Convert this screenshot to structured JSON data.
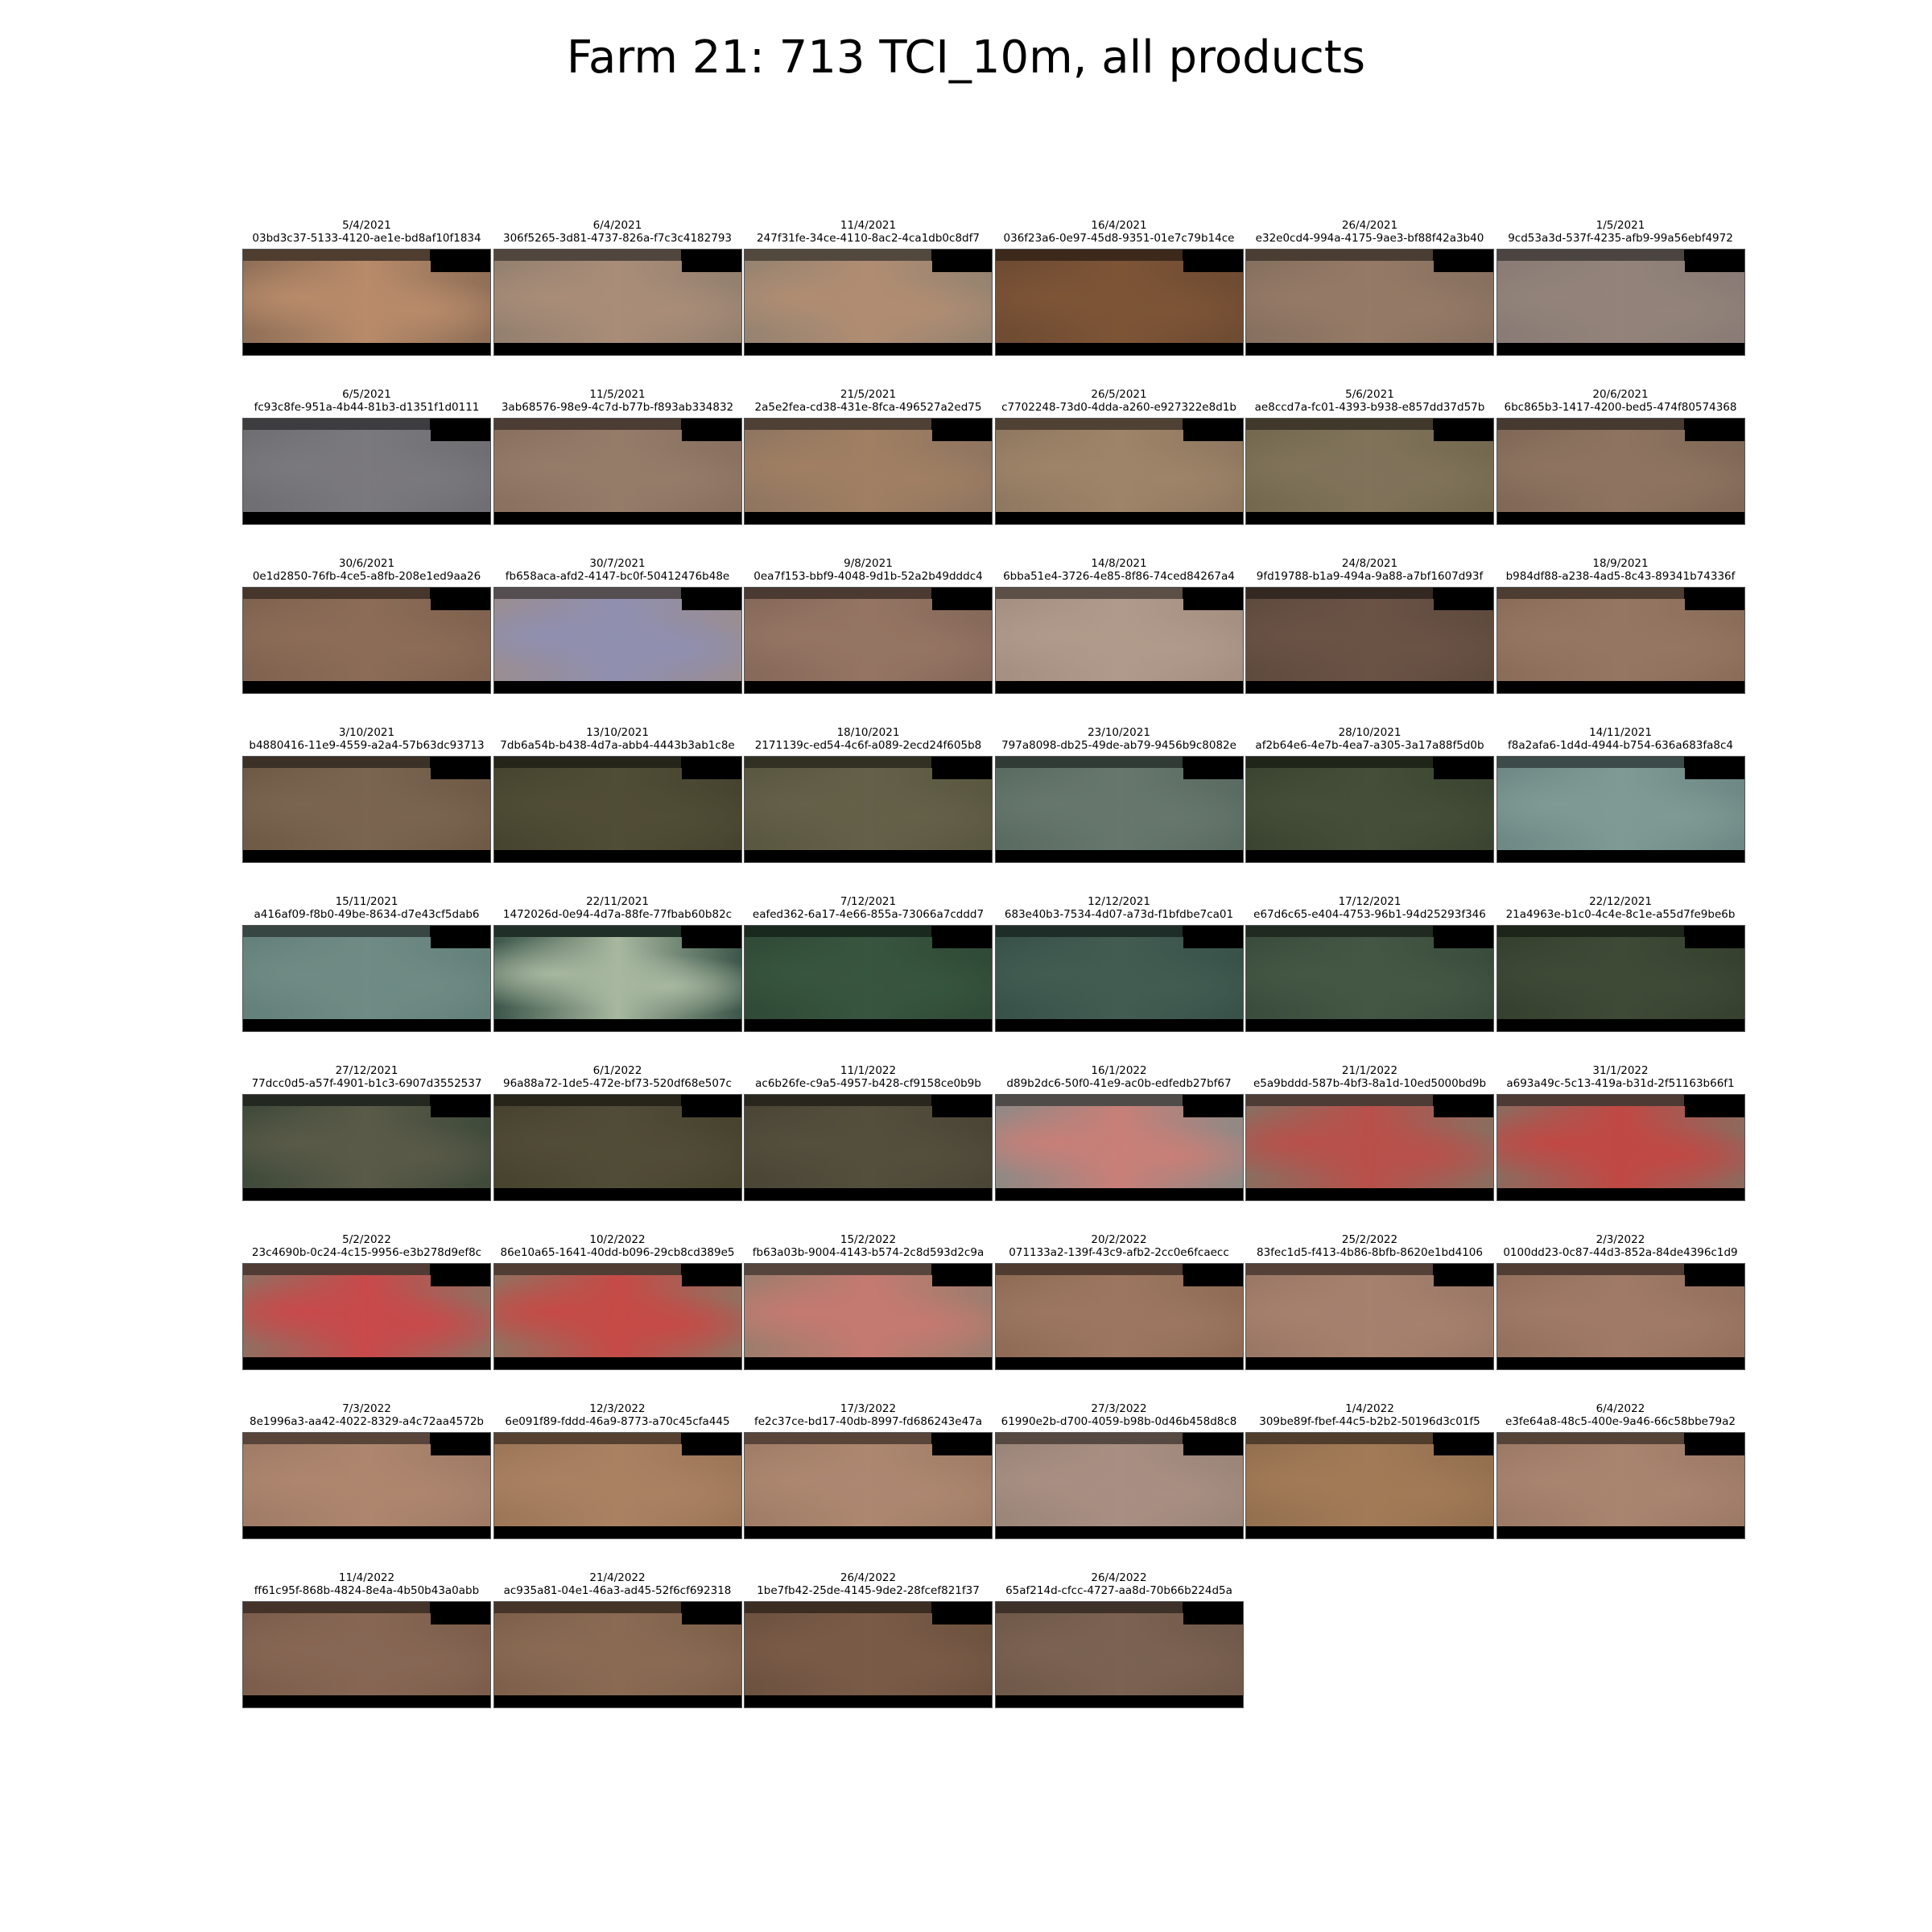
{
  "title": "Farm 21: 713 TCI_10m, all products",
  "tiles": [
    {
      "date": "5/4/2021",
      "id": "03bd3c37-5133-4120-ae1e-bd8af10f1834",
      "color": "#8f6f57",
      "accent": "#b88b6a"
    },
    {
      "date": "6/4/2021",
      "id": "306f5265-3d81-4737-826a-f7c3c4182793",
      "color": "#93806f",
      "accent": "#a98d78"
    },
    {
      "date": "11/4/2021",
      "id": "247f31fe-34ce-4110-8ac2-4ca1db0c8df7",
      "color": "#958371",
      "accent": "#b08d72"
    },
    {
      "date": "16/4/2021",
      "id": "036f23a6-0e97-45d8-9351-01e7c79b14ce",
      "color": "#6e4b33",
      "accent": "#7d5436"
    },
    {
      "date": "26/4/2021",
      "id": "e32e0cd4-994a-4175-9ae3-bf88f42a3b40",
      "color": "#86705f",
      "accent": "#957a66"
    },
    {
      "date": "1/5/2021",
      "id": "9cd53a3d-537f-4235-afb9-99a56ebf4972",
      "color": "#897b75",
      "accent": "#93837a"
    },
    {
      "date": "6/5/2021",
      "id": "fc93c8fe-951a-4b44-81b3-d1351f1d0111",
      "color": "#6f6e72",
      "accent": "#7a797d"
    },
    {
      "date": "11/5/2021",
      "id": "3ab68576-98e9-4c7d-b77b-f893ab334832",
      "color": "#89705f",
      "accent": "#957c69"
    },
    {
      "date": "21/5/2021",
      "id": "2a5e2fea-cd38-431e-8fca-496527a2ed75",
      "color": "#8f7560",
      "accent": "#a07f63"
    },
    {
      "date": "26/5/2021",
      "id": "c7702248-73d0-4dda-a260-e927322e8d1b",
      "color": "#8f7860",
      "accent": "#9e8468"
    },
    {
      "date": "5/6/2021",
      "id": "ae8ccd7a-fc01-4393-b938-e857dd37d57b",
      "color": "#74684f",
      "accent": "#80735a"
    },
    {
      "date": "20/6/2021",
      "id": "6bc865b3-1417-4200-bed5-474f80574368",
      "color": "#806856",
      "accent": "#8e7460"
    },
    {
      "date": "30/6/2021",
      "id": "0e1d2850-76fb-4ce5-a8fb-208e1ed9aa26",
      "color": "#7f624f",
      "accent": "#8c6c57"
    },
    {
      "date": "30/7/2021",
      "id": "fb658aca-afd2-4147-bc0f-50412476b48e",
      "color": "#9a8e92",
      "accent": "#8f8fb0"
    },
    {
      "date": "9/8/2021",
      "id": "0ea7f153-bbf9-4048-9d1b-52a2b49dddc4",
      "color": "#86695a",
      "accent": "#957462"
    },
    {
      "date": "14/8/2021",
      "id": "6bba51e4-3726-4e85-8f86-74ced84267a4",
      "color": "#a58f81",
      "accent": "#b09a8b"
    },
    {
      "date": "24/8/2021",
      "id": "9fd19788-b1a9-494a-9a88-a7bf1607d93f",
      "color": "#5f4a3e",
      "accent": "#6a5345"
    },
    {
      "date": "18/9/2021",
      "id": "b984df88-a238-4ad5-8c43-89341b74336f",
      "color": "#8a6d59",
      "accent": "#957662"
    },
    {
      "date": "3/10/2021",
      "id": "b4880416-11e9-4559-a2a4-57b63dc93713",
      "color": "#6e5a45",
      "accent": "#7a6550"
    },
    {
      "date": "13/10/2021",
      "id": "7db6a54b-b438-4d7a-abb4-4443b3ab1c8e",
      "color": "#46442f",
      "accent": "#504d36"
    },
    {
      "date": "18/10/2021",
      "id": "2171139c-ed54-4c6f-a089-2ecd24f605b8",
      "color": "#5a5740",
      "accent": "#646049"
    },
    {
      "date": "23/10/2021",
      "id": "797a8098-db25-49de-ab79-9456b9c8082e",
      "color": "#5a6b62",
      "accent": "#66776d"
    },
    {
      "date": "28/10/2021",
      "id": "af2b64e6-4e7b-4ea7-a305-3a17a88f5d0b",
      "color": "#3a4430",
      "accent": "#444e38"
    },
    {
      "date": "14/11/2021",
      "id": "f8a2afa6-1d4d-4944-b754-636a683fa8c4",
      "color": "#6e8885",
      "accent": "#7f9a95"
    },
    {
      "date": "15/11/2021",
      "id": "a416af09-f8b0-49be-8634-d7e43cf5dab6",
      "color": "#64807a",
      "accent": "#6f8b84"
    },
    {
      "date": "22/11/2021",
      "id": "1472026d-0e94-4d7a-88fe-77fbab60b82c",
      "color": "#3c564a",
      "accent": "#a8b8a0"
    },
    {
      "date": "7/12/2021",
      "id": "eafed362-6a17-4e66-855a-73066a7cddd7",
      "color": "#2f4a36",
      "accent": "#38553f"
    },
    {
      "date": "12/12/2021",
      "id": "683e40b3-7534-4d07-a73d-f1bfdbe7ca01",
      "color": "#38524a",
      "accent": "#425c52"
    },
    {
      "date": "17/12/2021",
      "id": "e67d6c65-e404-4753-96b1-94d25293f346",
      "color": "#3a4c3b",
      "accent": "#445644"
    },
    {
      "date": "22/12/2021",
      "id": "21a4963e-b1c0-4c4e-8c1e-a55d7fe9be6b",
      "color": "#35412e",
      "accent": "#3e4a36"
    },
    {
      "date": "27/12/2021",
      "id": "77dcc0d5-a57f-4901-b1c3-6907d3552537",
      "color": "#3f4a3a",
      "accent": "#5a5a48"
    },
    {
      "date": "6/1/2022",
      "id": "96a88a72-1de5-472e-bf73-520df68e507c",
      "color": "#47432f",
      "accent": "#514c37"
    },
    {
      "date": "11/1/2022",
      "id": "ac6b26fe-c9a5-4957-b428-cf9158ce0b9b",
      "color": "#4a4535",
      "accent": "#544e3d"
    },
    {
      "date": "16/1/2022",
      "id": "d89b2dc6-50f0-41e9-ac0b-edfedb27bf67",
      "color": "#8f8985",
      "accent": "#c87f78"
    },
    {
      "date": "21/1/2022",
      "id": "e5a9bddd-587b-4bf3-8a1d-10ed5000bd9b",
      "color": "#8a6e60",
      "accent": "#b9504a"
    },
    {
      "date": "31/1/2022",
      "id": "a693a49c-5c13-419a-b31d-2f51163b66f1",
      "color": "#8d6a5e",
      "accent": "#c14844"
    },
    {
      "date": "5/2/2022",
      "id": "23c4690b-0c24-4c15-9956-e3b278d9ef8c",
      "color": "#916e60",
      "accent": "#c9494a"
    },
    {
      "date": "10/2/2022",
      "id": "86e10a65-1641-40dd-b096-29cb8cd389e5",
      "color": "#92705f",
      "accent": "#c64a46"
    },
    {
      "date": "15/2/2022",
      "id": "fb63a03b-9004-4143-b574-2c8d593d2c9a",
      "color": "#9c7d6d",
      "accent": "#c57a70"
    },
    {
      "date": "20/2/2022",
      "id": "071133a2-139f-43c9-afb2-2cc0e6fcaecc",
      "color": "#8f6b56",
      "accent": "#9c7660"
    },
    {
      "date": "25/2/2022",
      "id": "83fec1d5-f413-4b86-8bfb-8620e1bd4106",
      "color": "#9a7765",
      "accent": "#a6816e"
    },
    {
      "date": "2/3/2022",
      "id": "0100dd23-0c87-44d3-852a-84de4396c1d9",
      "color": "#93705d",
      "accent": "#a07a66"
    },
    {
      "date": "7/3/2022",
      "id": "8e1996a3-aa42-4022-8329-a4c72aa4572b",
      "color": "#a07b66",
      "accent": "#ae866f"
    },
    {
      "date": "12/3/2022",
      "id": "6e091f89-fddd-46a9-8773-a70c45cfa445",
      "color": "#9c7658",
      "accent": "#aa8262"
    },
    {
      "date": "17/3/2022",
      "id": "fe2c37ce-bd17-40db-8997-fd686243e47a",
      "color": "#a07c66",
      "accent": "#ad8770"
    },
    {
      "date": "27/3/2022",
      "id": "61990e2b-d700-4059-b98b-0d46b458d8c8",
      "color": "#9b8579",
      "accent": "#a88f82"
    },
    {
      "date": "1/4/2022",
      "id": "309be89f-fbef-44c5-b2b2-50196d3c01f5",
      "color": "#94704f",
      "accent": "#a27a57"
    },
    {
      "date": "6/4/2022",
      "id": "e3fe64a8-48c5-400e-9a46-66c58bbe79a2",
      "color": "#9c7a66",
      "accent": "#a9846f"
    },
    {
      "date": "11/4/2022",
      "id": "ff61c95f-868b-4824-8e4a-4b50b43a0abb",
      "color": "#7c5d4b",
      "accent": "#876754"
    },
    {
      "date": "21/4/2022",
      "id": "ac935a81-04e1-46a3-ad45-52f6cf692318",
      "color": "#7e604a",
      "accent": "#8a6a53"
    },
    {
      "date": "26/4/2022",
      "id": "1be7fb42-25de-4145-9de2-28fcef821f37",
      "color": "#6d5240",
      "accent": "#795b47"
    },
    {
      "date": "26/4/2022",
      "id": "65af214d-cfcc-4727-aa8d-70b66b224d5a",
      "color": "#70594a",
      "accent": "#7b6252"
    }
  ]
}
